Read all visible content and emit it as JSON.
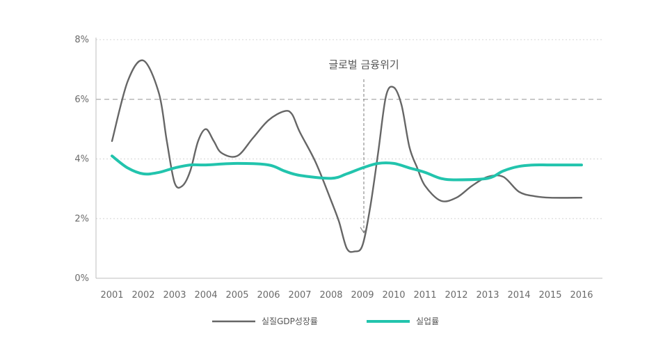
{
  "chart_data": {
    "type": "line",
    "title": "",
    "xlabel": "",
    "ylabel": "",
    "categories": [
      "2001",
      "2002",
      "2003",
      "2004",
      "2005",
      "2006",
      "2007",
      "2008",
      "2009",
      "2010",
      "2011",
      "2012",
      "2013",
      "2014",
      "2015",
      "2016"
    ],
    "y_ticks": [
      "0%",
      "2%",
      "4%",
      "6%",
      "8%"
    ],
    "ylim": [
      0,
      8
    ],
    "grid": true,
    "reference_line": {
      "value": 6,
      "style": "dashed"
    },
    "annotation": {
      "label": "글로벌 금융위기",
      "x": "2009",
      "y_point": 1.5
    },
    "series": [
      {
        "name": "실질GDP성장률",
        "color": "#666666",
        "points": [
          [
            2001,
            4.6
          ],
          [
            2001.5,
            6.6
          ],
          [
            2002,
            7.3
          ],
          [
            2002.5,
            6.2
          ],
          [
            2002.75,
            4.6
          ],
          [
            2003,
            3.2
          ],
          [
            2003.25,
            3.1
          ],
          [
            2003.5,
            3.6
          ],
          [
            2003.75,
            4.6
          ],
          [
            2004,
            5.0
          ],
          [
            2004.25,
            4.6
          ],
          [
            2004.5,
            4.2
          ],
          [
            2005,
            4.1
          ],
          [
            2005.5,
            4.7
          ],
          [
            2006,
            5.3
          ],
          [
            2006.5,
            5.6
          ],
          [
            2006.75,
            5.5
          ],
          [
            2007,
            4.9
          ],
          [
            2007.5,
            3.9
          ],
          [
            2008,
            2.6
          ],
          [
            2008.25,
            1.9
          ],
          [
            2008.5,
            1.0
          ],
          [
            2008.75,
            0.9
          ],
          [
            2009,
            1.1
          ],
          [
            2009.25,
            2.4
          ],
          [
            2009.5,
            4.2
          ],
          [
            2009.75,
            6.1
          ],
          [
            2010,
            6.4
          ],
          [
            2010.25,
            5.8
          ],
          [
            2010.5,
            4.4
          ],
          [
            2010.75,
            3.7
          ],
          [
            2011,
            3.1
          ],
          [
            2011.5,
            2.6
          ],
          [
            2012,
            2.7
          ],
          [
            2012.5,
            3.1
          ],
          [
            2013,
            3.4
          ],
          [
            2013.5,
            3.4
          ],
          [
            2014,
            2.9
          ],
          [
            2014.5,
            2.75
          ],
          [
            2015,
            2.7
          ],
          [
            2016,
            2.7
          ]
        ]
      },
      {
        "name": "실업률",
        "color": "#22c4ad",
        "points": [
          [
            2001,
            4.1
          ],
          [
            2001.5,
            3.7
          ],
          [
            2002,
            3.5
          ],
          [
            2002.5,
            3.55
          ],
          [
            2003,
            3.7
          ],
          [
            2003.5,
            3.8
          ],
          [
            2004,
            3.8
          ],
          [
            2005,
            3.85
          ],
          [
            2006,
            3.8
          ],
          [
            2006.5,
            3.6
          ],
          [
            2007,
            3.45
          ],
          [
            2008,
            3.35
          ],
          [
            2008.5,
            3.5
          ],
          [
            2009,
            3.7
          ],
          [
            2009.5,
            3.85
          ],
          [
            2010,
            3.85
          ],
          [
            2010.5,
            3.7
          ],
          [
            2011,
            3.55
          ],
          [
            2011.5,
            3.35
          ],
          [
            2012,
            3.3
          ],
          [
            2013,
            3.35
          ],
          [
            2013.5,
            3.6
          ],
          [
            2014,
            3.75
          ],
          [
            2014.5,
            3.8
          ],
          [
            2015,
            3.8
          ],
          [
            2016,
            3.8
          ]
        ]
      }
    ]
  }
}
